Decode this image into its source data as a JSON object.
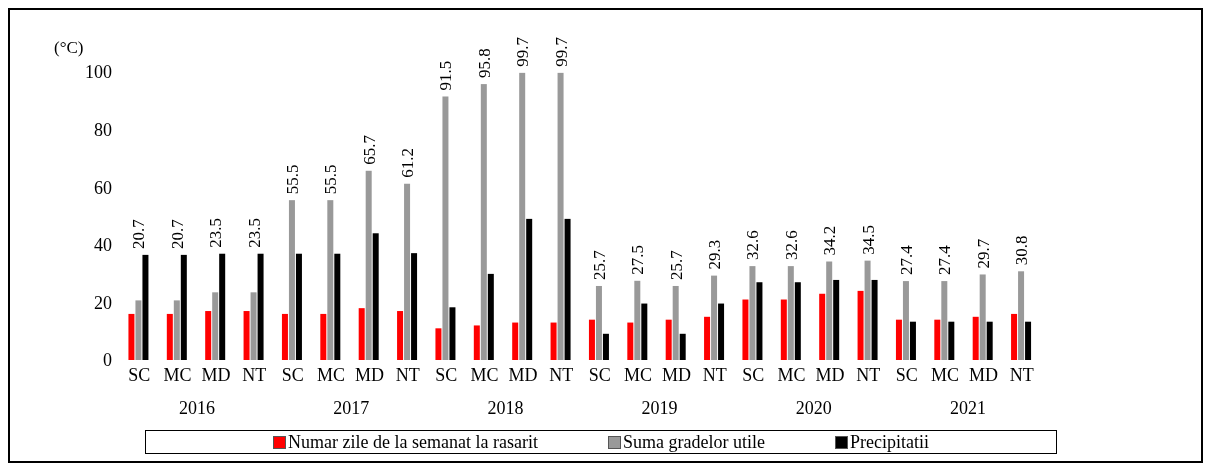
{
  "chart_data": {
    "type": "bar",
    "ylabel": "(°C)",
    "categories": [
      "SC",
      "MC",
      "MD",
      "NT",
      "SC",
      "MC",
      "MD",
      "NT",
      "SC",
      "MC",
      "MD",
      "NT",
      "SC",
      "MC",
      "MD",
      "NT",
      "SC",
      "MC",
      "MD",
      "NT",
      "SC",
      "MC",
      "MD",
      "NT"
    ],
    "annotations": [
      "2016",
      "2017",
      "2018",
      "2019",
      "2020",
      "2021"
    ],
    "series": [
      {
        "name": "Numar zile de la semanat la rasarit",
        "color": "#ff0000",
        "values": [
          16,
          16,
          17,
          17,
          16,
          16,
          18,
          17,
          11,
          12,
          13,
          13,
          14,
          13,
          14,
          15,
          21,
          21,
          23,
          24,
          14,
          14,
          15,
          16
        ]
      },
      {
        "name": "Suma gradelor utile",
        "color": "#999999",
        "values": [
          20.7,
          20.7,
          23.5,
          23.5,
          55.5,
          55.5,
          65.7,
          61.2,
          91.5,
          95.8,
          99.7,
          99.7,
          25.7,
          27.5,
          25.7,
          29.3,
          32.6,
          32.6,
          34.2,
          34.5,
          27.4,
          27.4,
          29.7,
          30.8
        ],
        "value_labels": [
          "20.7",
          "20.7",
          "23.5",
          "23.5",
          "55.5",
          "55.5",
          "65.7",
          "61.2",
          "91.5",
          "95.8",
          "99.7",
          "99.7",
          "25.7",
          "27.5",
          "25.7",
          "29.3",
          "32.6",
          "32.6",
          "34.2",
          "34.5",
          "27.4",
          "27.4",
          "29.7",
          "30.8"
        ]
      },
      {
        "name": "Precipitatii",
        "color": "#000000",
        "values": [
          36.5,
          36.5,
          36.9,
          36.9,
          36.9,
          36.9,
          44,
          37.1,
          18.3,
          29.9,
          49,
          49,
          9.1,
          19.6,
          9.1,
          19.6,
          27,
          27,
          27.8,
          27.8,
          13.3,
          13.3,
          13.3,
          13.3
        ]
      }
    ],
    "ylim": [
      0,
      100
    ],
    "yticks": [
      0,
      20,
      40,
      60,
      80,
      100
    ],
    "grid": false,
    "legend": "bottom"
  }
}
